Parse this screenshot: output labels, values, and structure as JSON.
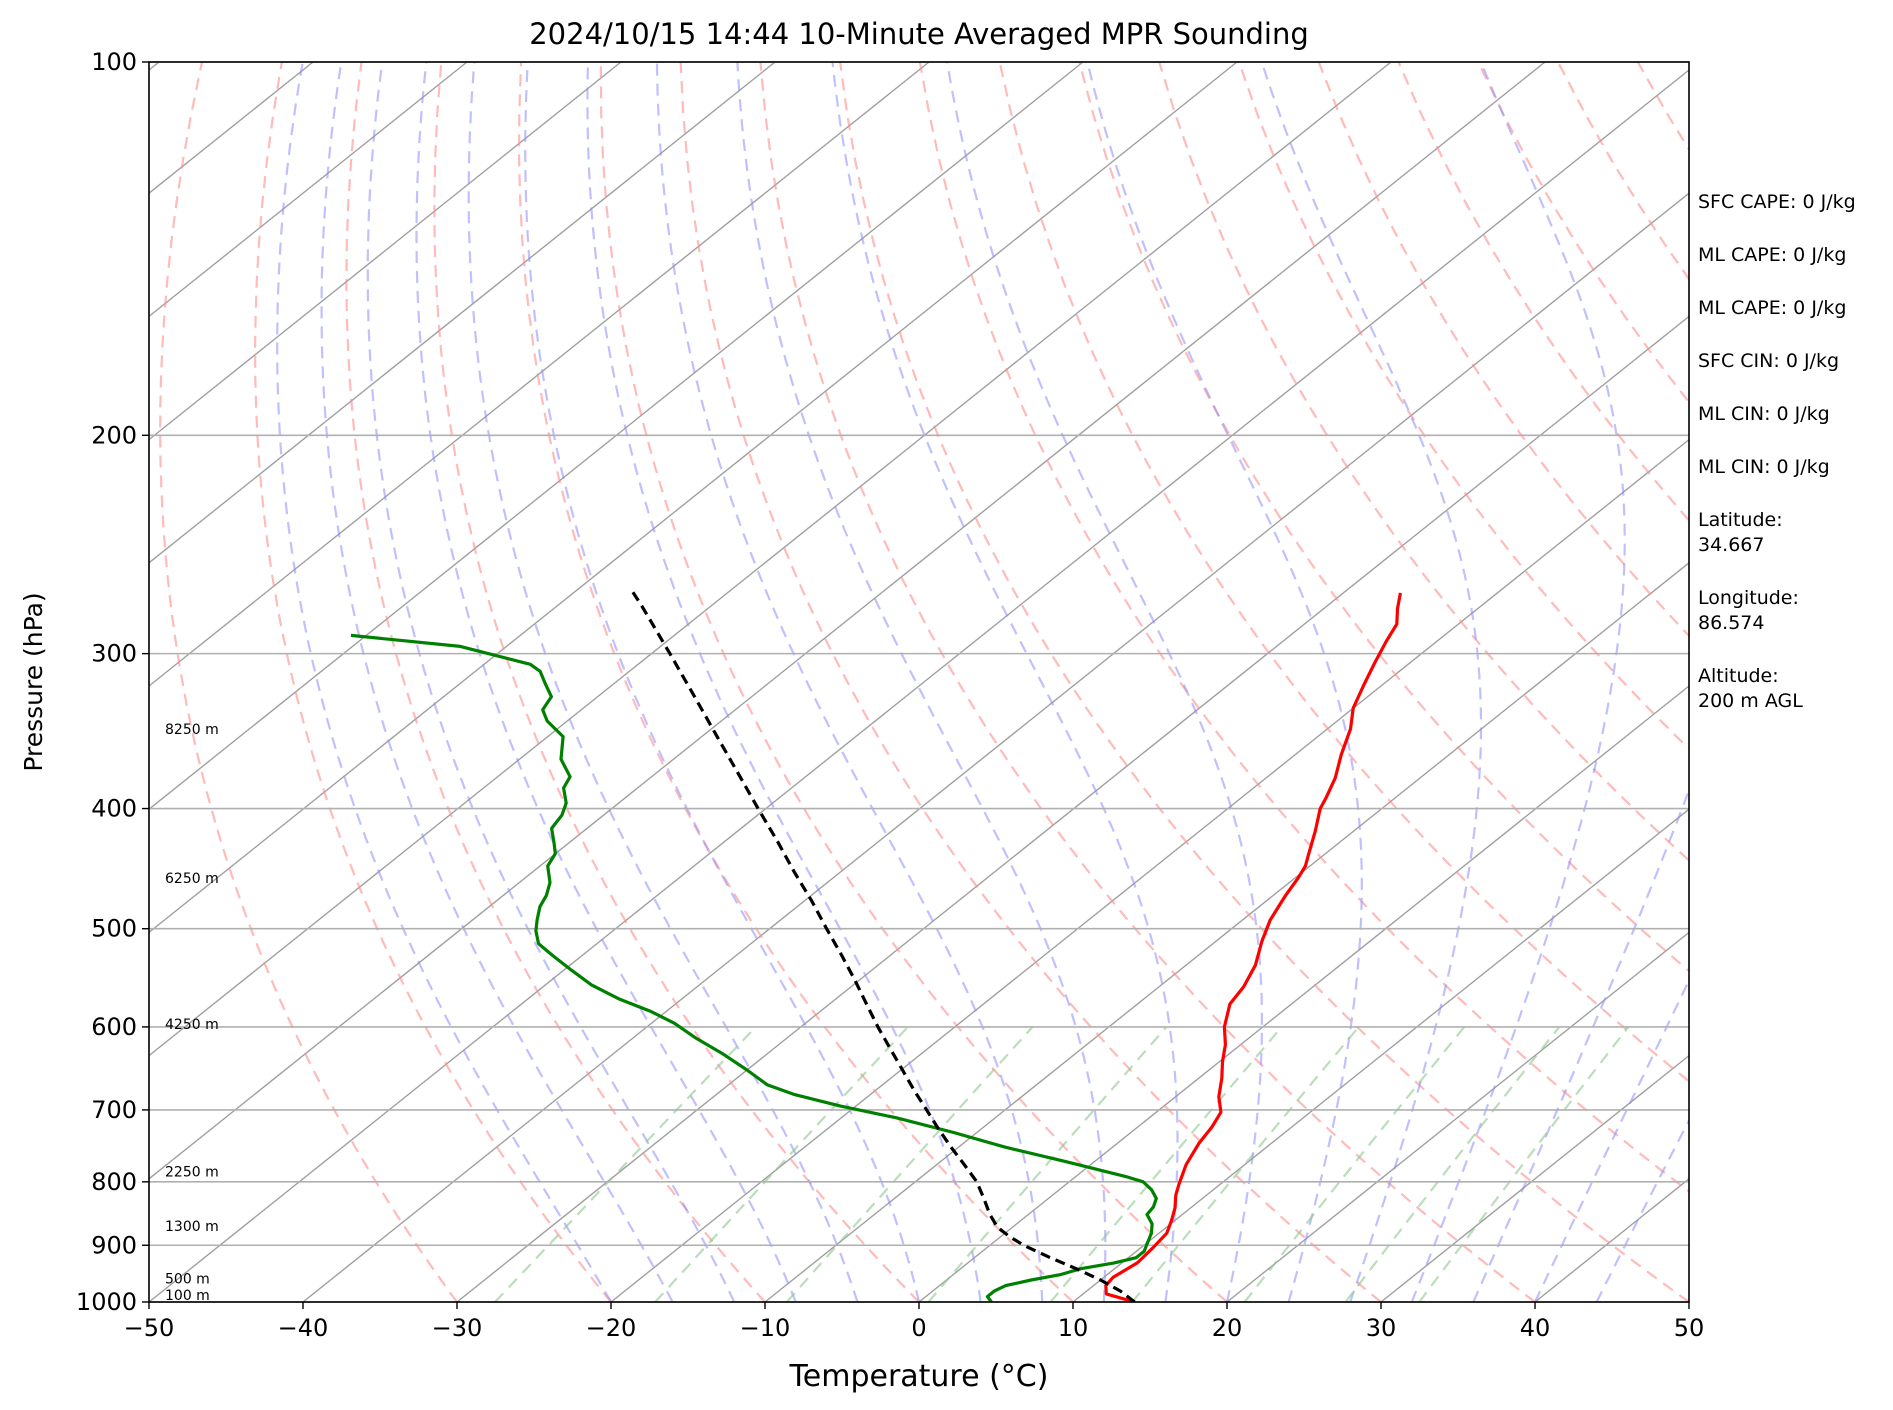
{
  "chart_data": {
    "type": "line",
    "title": "2024/10/15 14:44 10-Minute Averaged MPR Sounding",
    "xlabel": "Temperature (°C)",
    "ylabel": "Pressure (hPa)",
    "xlim": [
      -50,
      50
    ],
    "ylim": [
      1000,
      100
    ],
    "y_scale": "log",
    "skew": "skew-T",
    "x_ticks": [
      "−50",
      "−40",
      "−30",
      "−20",
      "−10",
      "0",
      "10",
      "20",
      "30",
      "40",
      "50"
    ],
    "x_tick_values": [
      -50,
      -40,
      -30,
      -20,
      -10,
      0,
      10,
      20,
      30,
      40,
      50
    ],
    "y_ticks": [
      "100",
      "200",
      "300",
      "400",
      "500",
      "600",
      "700",
      "800",
      "900",
      "1000"
    ],
    "y_tick_values": [
      100,
      200,
      300,
      400,
      500,
      600,
      700,
      800,
      900,
      1000
    ],
    "grid": true,
    "height_labels": [
      {
        "text": "8250 m",
        "pressure": 345
      },
      {
        "text": "6250 m",
        "pressure": 455
      },
      {
        "text": "4250 m",
        "pressure": 597
      },
      {
        "text": "2250 m",
        "pressure": 785
      },
      {
        "text": "1300 m",
        "pressure": 868
      },
      {
        "text": "500 m",
        "pressure": 957
      },
      {
        "text": "100 m",
        "pressure": 1000
      }
    ],
    "series": [
      {
        "color": "#ff0000",
        "points": [
          [
            14,
            1000
          ],
          [
            11.5,
            985
          ],
          [
            10.8,
            970
          ],
          [
            10.6,
            955
          ],
          [
            11,
            930
          ],
          [
            10.8,
            905
          ],
          [
            10.5,
            880
          ],
          [
            9.8,
            860
          ],
          [
            9,
            840
          ],
          [
            8,
            820
          ],
          [
            7.3,
            803
          ],
          [
            6.2,
            775
          ],
          [
            5.3,
            745
          ],
          [
            4.8,
            722
          ],
          [
            4.2,
            703
          ],
          [
            2.8,
            683
          ],
          [
            1.5,
            660
          ],
          [
            0.2,
            640
          ],
          [
            -1,
            620
          ],
          [
            -2.5,
            600
          ],
          [
            -4,
            575
          ],
          [
            -4.5,
            557
          ],
          [
            -5.5,
            535
          ],
          [
            -7,
            512
          ],
          [
            -8.2,
            492
          ],
          [
            -9.2,
            470
          ],
          [
            -9.8,
            455
          ],
          [
            -10.3,
            445
          ],
          [
            -11,
            436
          ],
          [
            -12.5,
            417
          ],
          [
            -14,
            400
          ],
          [
            -14.5,
            392
          ],
          [
            -15.5,
            378
          ],
          [
            -17,
            362
          ],
          [
            -18.5,
            345
          ],
          [
            -20,
            332
          ],
          [
            -21.2,
            318
          ],
          [
            -22.3,
            305
          ],
          [
            -23.3,
            293
          ],
          [
            -24,
            284
          ],
          [
            -25.2,
            276
          ],
          [
            -26.3,
            268
          ]
        ]
      },
      {
        "color": "#008000",
        "points": [
          [
            4.7,
            1000
          ],
          [
            4,
            990
          ],
          [
            4,
            980
          ],
          [
            4.3,
            970
          ],
          [
            5.5,
            960
          ],
          [
            7,
            950
          ],
          [
            7.8,
            940
          ],
          [
            9.5,
            930
          ],
          [
            10.5,
            921
          ],
          [
            10.5,
            910
          ],
          [
            10,
            895
          ],
          [
            9.5,
            880
          ],
          [
            8.8,
            865
          ],
          [
            7.7,
            850
          ],
          [
            7.5,
            838
          ],
          [
            7,
            825
          ],
          [
            6,
            812
          ],
          [
            4.8,
            800
          ],
          [
            3.2,
            792
          ],
          [
            -2,
            770
          ],
          [
            -7,
            750
          ],
          [
            -11.5,
            730
          ],
          [
            -16.5,
            710
          ],
          [
            -21,
            695
          ],
          [
            -25,
            680
          ],
          [
            -27.5,
            668
          ],
          [
            -30,
            650
          ],
          [
            -33,
            630
          ],
          [
            -36,
            612
          ],
          [
            -38.5,
            596
          ],
          [
            -41,
            583
          ],
          [
            -44,
            570
          ],
          [
            -47,
            555
          ],
          [
            -49.5,
            540
          ],
          [
            -52,
            525
          ],
          [
            -53.8,
            514
          ],
          [
            -55,
            502
          ],
          [
            -55.8,
            492
          ],
          [
            -56.7,
            480
          ],
          [
            -57.2,
            470
          ],
          [
            -58,
            459
          ],
          [
            -59.5,
            445
          ],
          [
            -60,
            435
          ],
          [
            -61,
            426
          ],
          [
            -62.3,
            415
          ],
          [
            -62.7,
            405
          ],
          [
            -63.4,
            396
          ],
          [
            -64.8,
            385
          ],
          [
            -65.3,
            377
          ],
          [
            -67.3,
            365
          ],
          [
            -69,
            350
          ],
          [
            -71.3,
            340
          ],
          [
            -72.5,
            333
          ],
          [
            -73,
            325
          ],
          [
            -74.5,
            317
          ],
          [
            -75.8,
            310
          ],
          [
            -77,
            306
          ],
          [
            -83,
            296
          ],
          [
            -91,
            290
          ]
        ]
      },
      {
        "color": "#000000",
        "dashed": true,
        "points": [
          [
            14,
            1000
          ],
          [
            12.2,
            980
          ],
          [
            10,
            960
          ],
          [
            7.5,
            940
          ],
          [
            4.8,
            920
          ],
          [
            2.2,
            900
          ],
          [
            0.5,
            885
          ],
          [
            -1,
            870
          ],
          [
            -2.5,
            850
          ],
          [
            -4.2,
            825
          ],
          [
            -6,
            800
          ],
          [
            -8.2,
            775
          ],
          [
            -10.5,
            750
          ],
          [
            -12.8,
            725
          ],
          [
            -15.1,
            700
          ],
          [
            -17.5,
            675
          ],
          [
            -19.9,
            650
          ],
          [
            -22.4,
            625
          ],
          [
            -25,
            600
          ],
          [
            -27.6,
            575
          ],
          [
            -30.3,
            550
          ],
          [
            -33.2,
            525
          ],
          [
            -36.3,
            500
          ],
          [
            -39.5,
            475
          ],
          [
            -43,
            450
          ],
          [
            -46.6,
            425
          ],
          [
            -50.5,
            400
          ],
          [
            -54.6,
            375
          ],
          [
            -59,
            350
          ],
          [
            -63.7,
            325
          ],
          [
            -68.8,
            300
          ],
          [
            -74.4,
            275
          ],
          [
            -76.6,
            266
          ]
        ]
      }
    ]
  },
  "stats_panel": {
    "sfc_cape": "SFC CAPE: 0 J/kg",
    "ml_cape_1": "ML CAPE: 0 J/kg",
    "ml_cape_2": "ML CAPE: 0 J/kg",
    "sfc_cin": "SFC CIN: 0 J/kg",
    "ml_cin_1": "ML CIN: 0 J/kg",
    "ml_cin_2": "ML CIN: 0 J/kg",
    "latitude_label": "Latitude:",
    "latitude_value": "34.667",
    "longitude_label": "Longitude:",
    "longitude_value": "86.574",
    "altitude_label": "Altitude:",
    "altitude_value": "200 m AGL"
  },
  "colors": {
    "temperature": "#ff0000",
    "dewpoint": "#008000",
    "parcel": "#000000",
    "dry_adiabats": "#ff8c8c",
    "moist_adiabats": "#8c8cff",
    "mixing_ratio": "#8cc88c",
    "isotherms": "#a0a0a0"
  }
}
